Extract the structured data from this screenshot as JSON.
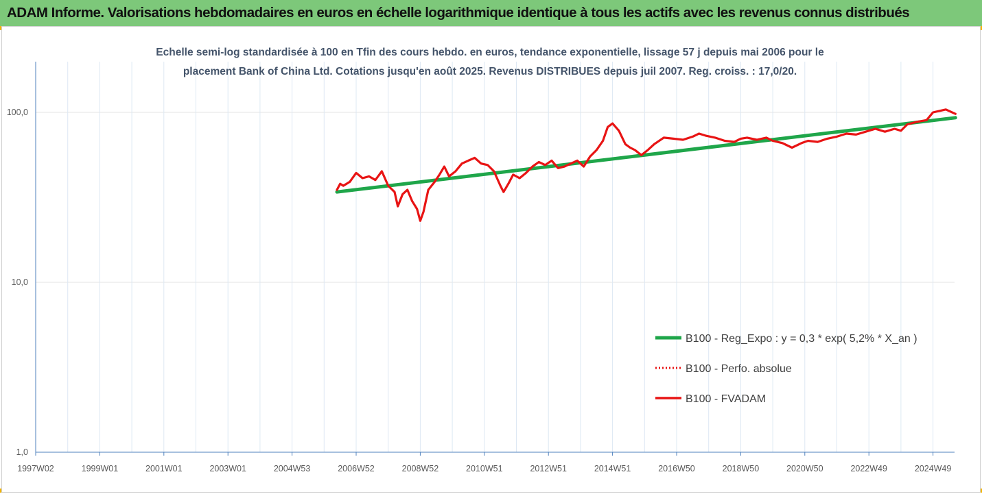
{
  "header": {
    "title": "ADAM Informe. Valorisations hebdomadaires en euros en échelle logarithmique identique à tous les actifs avec les revenus connus distribués"
  },
  "colors": {
    "banner": "#7dc87a",
    "corner_marker": "#f2b400",
    "trend": "#1fa64a",
    "performance": "#e81414",
    "subtitle": "#44546a",
    "gridline": "#dde8f3"
  },
  "chart_data": {
    "type": "line",
    "title": "Echelle semi-log standardisée à 100 en Tfin des cours hebdo. en euros, tendance exponentielle, lissage 57 j depuis mai 2006 pour le placement Bank of China Ltd. Cotations jusqu'en août 2025. Revenus DISTRIBUES depuis juil 2007. Reg. croiss. : 17,0/20.",
    "title_lines": [
      "Echelle semi-log standardisée à 100 en Tfin des cours hebdo. en euros, tendance exponentielle, lissage 57 j depuis mai 2006 pour le",
      "placement Bank of China Ltd. Cotations jusqu'en août 2025. Revenus DISTRIBUES depuis juil 2007. Reg. croiss. : 17,0/20."
    ],
    "xlabel": "",
    "ylabel": "",
    "y_scale": "log",
    "ylim": [
      1,
      200
    ],
    "y_ticks": [
      {
        "value": 1,
        "label": "1,0"
      },
      {
        "value": 10,
        "label": "10,0"
      },
      {
        "value": 100,
        "label": "100,0"
      }
    ],
    "x_range": [
      1997.0,
      2025.7
    ],
    "x_ticks": [
      {
        "label": "1997W02",
        "x": 1997.0
      },
      {
        "label": "1999W01",
        "x": 1999.0
      },
      {
        "label": "2001W01",
        "x": 2001.0
      },
      {
        "label": "2003W01",
        "x": 2003.0
      },
      {
        "label": "2004W53",
        "x": 2005.0
      },
      {
        "label": "2006W52",
        "x": 2007.0
      },
      {
        "label": "2008W52",
        "x": 2009.0
      },
      {
        "label": "2010W51",
        "x": 2011.0
      },
      {
        "label": "2012W51",
        "x": 2013.0
      },
      {
        "label": "2014W51",
        "x": 2015.0
      },
      {
        "label": "2016W50",
        "x": 2017.0
      },
      {
        "label": "2018W50",
        "x": 2019.0
      },
      {
        "label": "2020W50",
        "x": 2021.0
      },
      {
        "label": "2022W49",
        "x": 2023.0
      },
      {
        "label": "2024W49",
        "x": 2025.0
      }
    ],
    "grid": "vertical",
    "legend_position": "bottom-right",
    "series": [
      {
        "name": "B100 - Reg_Expo : y = 0,3 * exp( 5,2% *  X_an )",
        "style": "solid-thick",
        "color": "#1fa64a",
        "x": [
          2006.4,
          2025.7
        ],
        "y": [
          34,
          93
        ]
      },
      {
        "name": "B100 - Perfo. absolue",
        "style": "dotted",
        "color": "#e81414",
        "x": [],
        "y": []
      },
      {
        "name": "B100 - FVADAM",
        "style": "solid-thick",
        "color": "#e81414",
        "x": [
          2006.4,
          2006.5,
          2006.6,
          2006.8,
          2007.0,
          2007.2,
          2007.4,
          2007.6,
          2007.8,
          2008.0,
          2008.2,
          2008.3,
          2008.45,
          2008.6,
          2008.75,
          2008.9,
          2009.0,
          2009.1,
          2009.25,
          2009.45,
          2009.6,
          2009.75,
          2009.9,
          2010.1,
          2010.3,
          2010.5,
          2010.7,
          2010.9,
          2011.1,
          2011.3,
          2011.5,
          2011.6,
          2011.75,
          2011.9,
          2012.1,
          2012.3,
          2012.5,
          2012.7,
          2012.9,
          2013.1,
          2013.3,
          2013.5,
          2013.7,
          2013.9,
          2014.1,
          2014.3,
          2014.5,
          2014.7,
          2014.85,
          2015.0,
          2015.2,
          2015.4,
          2015.55,
          2015.7,
          2015.9,
          2016.1,
          2016.3,
          2016.6,
          2016.9,
          2017.2,
          2017.5,
          2017.7,
          2017.9,
          2018.2,
          2018.5,
          2018.8,
          2019.0,
          2019.2,
          2019.5,
          2019.8,
          2020.0,
          2020.3,
          2020.6,
          2020.9,
          2021.1,
          2021.4,
          2021.7,
          2022.0,
          2022.3,
          2022.6,
          2022.9,
          2023.2,
          2023.5,
          2023.8,
          2024.0,
          2024.2,
          2024.5,
          2024.8,
          2025.0,
          2025.2,
          2025.4,
          2025.7
        ],
        "y": [
          35,
          38,
          37,
          39,
          44,
          41,
          42,
          40,
          45,
          37,
          34,
          28,
          33,
          35,
          30,
          27,
          23,
          26,
          35,
          39,
          43,
          48,
          42,
          45,
          50,
          52,
          54,
          50,
          49,
          45,
          37,
          34,
          38,
          43,
          41,
          44,
          48,
          51,
          49,
          52,
          47,
          48,
          50,
          52,
          48,
          55,
          60,
          68,
          82,
          86,
          78,
          65,
          62,
          60,
          56,
          60,
          65,
          71,
          70,
          69,
          72,
          75,
          73,
          71,
          68,
          67,
          70,
          71,
          69,
          71,
          68,
          66,
          62,
          66,
          68,
          67,
          70,
          72,
          75,
          74,
          77,
          80,
          77,
          80,
          78,
          85,
          88,
          90,
          100,
          102,
          104,
          98
        ]
      }
    ]
  }
}
